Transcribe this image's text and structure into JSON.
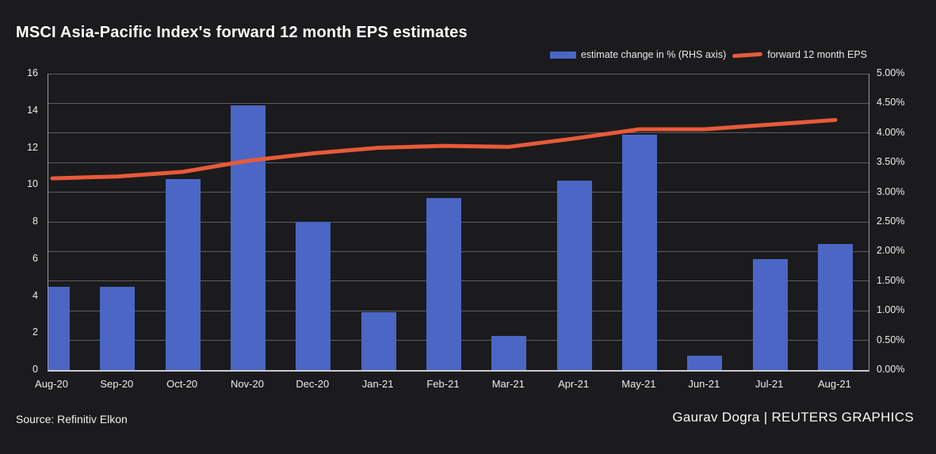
{
  "title": "MSCI Asia-Pacific Index's forward 12 month EPS estimates",
  "legend": {
    "items": [
      {
        "label": "estimate change in % (RHS axis)",
        "swatch": "bar-swatch",
        "color": "#4b66c5"
      },
      {
        "label": "forward 12 month EPS",
        "swatch": "line-swatch",
        "color": "#e85a3a"
      }
    ]
  },
  "footer": {
    "source": "Source: Refinitiv Elkon",
    "credit": "Gaurav Dogra | REUTERS GRAPHICS"
  },
  "chart_data": {
    "type": "bar",
    "subtype": "bar-and-line-dual-axis",
    "title": "MSCI Asia-Pacific Index's forward 12 month EPS estimates",
    "categories": [
      "Aug-20",
      "Sep-20",
      "Oct-20",
      "Nov-20",
      "Dec-20",
      "Jan-21",
      "Feb-21",
      "Mar-21",
      "Apr-21",
      "May-21",
      "Jun-21",
      "Jul-21",
      "Aug-21"
    ],
    "series": [
      {
        "name": "estimate change in % (RHS axis)",
        "type": "bar",
        "axis": "right",
        "unit": "%",
        "color": "#4b66c5",
        "values": [
          1.4,
          1.4,
          3.22,
          4.46,
          2.5,
          0.97,
          2.9,
          0.58,
          3.2,
          3.97,
          0.24,
          1.87,
          2.12
        ]
      },
      {
        "name": "forward 12 month EPS",
        "type": "line",
        "axis": "left",
        "color": "#e85a3a",
        "values": [
          10.35,
          10.45,
          10.7,
          11.3,
          11.7,
          12.0,
          12.1,
          12.05,
          12.5,
          13.0,
          13.0,
          13.25,
          13.5
        ]
      }
    ],
    "left_axis": {
      "min": 0,
      "max": 16,
      "step": 2,
      "ticks": [
        "0",
        "2",
        "4",
        "6",
        "8",
        "10",
        "12",
        "14",
        "16"
      ]
    },
    "right_axis": {
      "min": 0,
      "max": 5,
      "step": 0.5,
      "ticks": [
        "0.00%",
        "0.50%",
        "1.00%",
        "1.50%",
        "2.00%",
        "2.50%",
        "3.00%",
        "3.50%",
        "4.00%",
        "4.50%",
        "5.00%"
      ]
    },
    "grid": "horizontal",
    "legend_position": "top-right",
    "colors": {
      "background": "#1b1b1d",
      "bar": "#4b66c5",
      "line": "#e85a3a",
      "grid": "#5d5d61",
      "axis": "#c9c9cc",
      "text": "#f2f2f2"
    }
  }
}
